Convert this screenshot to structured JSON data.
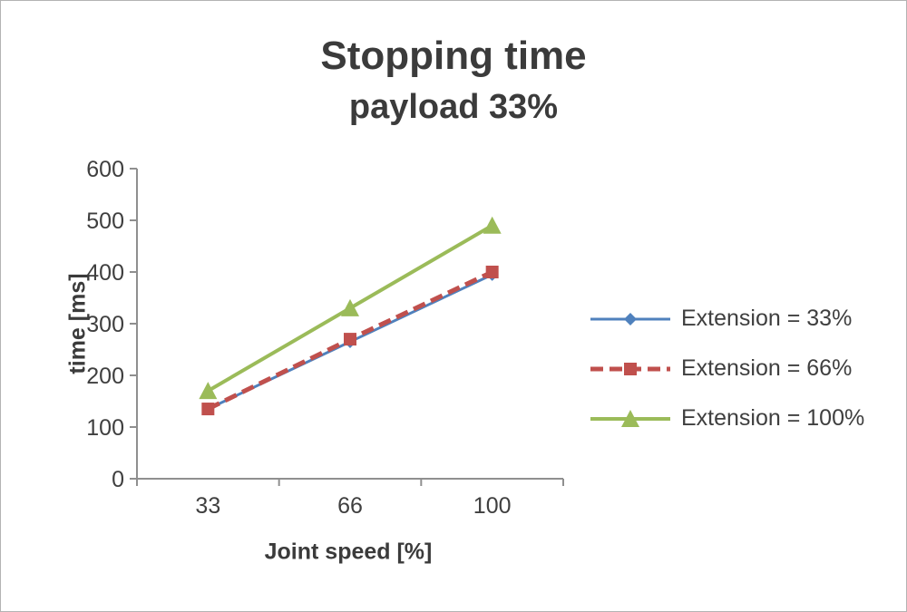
{
  "chart_data": {
    "type": "line",
    "title": "Stopping time",
    "subtitle": "payload 33%",
    "xlabel": "Joint speed [%]",
    "ylabel": "time [ms]",
    "categories": [
      "33",
      "66",
      "100"
    ],
    "ylim": [
      0,
      600
    ],
    "yticks": [
      0,
      100,
      200,
      300,
      400,
      500,
      600
    ],
    "grid": false,
    "legend_position": "right",
    "series": [
      {
        "name": "Extension = 33%",
        "values": [
          135,
          265,
          395
        ],
        "color": "#4f81bd",
        "marker": "diamond",
        "dash": "solid",
        "width": 3
      },
      {
        "name": "Extension = 66%",
        "values": [
          135,
          270,
          400
        ],
        "color": "#c0504d",
        "marker": "square",
        "dash": "dashed",
        "width": 5
      },
      {
        "name": "Extension = 100%",
        "values": [
          170,
          330,
          490
        ],
        "color": "#9bbb59",
        "marker": "triangle",
        "dash": "solid",
        "width": 4
      }
    ],
    "colors": {
      "axis": "#8f8f8f",
      "text": "#3f3f3f"
    }
  }
}
